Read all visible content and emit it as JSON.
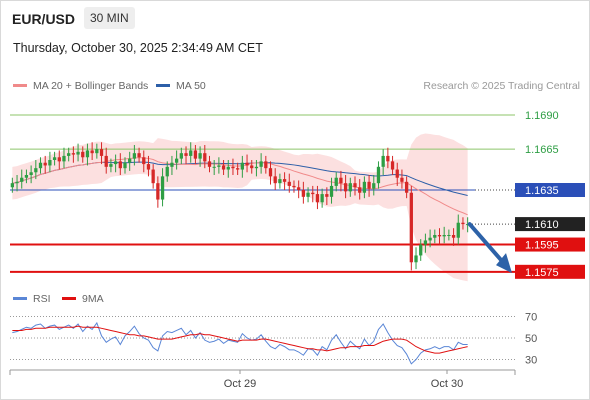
{
  "header": {
    "pair": "EUR/USD",
    "timeframe": "30 MIN",
    "timestamp": "Thursday, October 30, 2025 2:34:49 AM CET",
    "credit": "Research © 2025 Trading Central"
  },
  "legend": {
    "ma20": "MA 20 + Bollinger Bands",
    "ma50": "MA 50",
    "rsi": "RSI",
    "ma9": "9MA"
  },
  "colors": {
    "bull": "#2e9e44",
    "bear": "#d62828",
    "ma20": "#f08a8a",
    "ma50": "#2d5fa8",
    "band": "#fbdada",
    "resistance_line": "#8cc56a",
    "pivot_line": "#2b4fb8",
    "support_line": "#e01010",
    "arrow": "#2d62a8",
    "rsi": "#5a86d6",
    "rsi_ma": "#e01010"
  },
  "chart_data": [
    {
      "type": "candlestick",
      "title": "EUR/USD 30 MIN",
      "ylim": [
        1.1569,
        1.1701
      ],
      "x_ticks": [
        "Oct 29",
        "Oct 30"
      ],
      "levels": [
        {
          "label": "1.1690",
          "value": 1.169,
          "kind": "resistance"
        },
        {
          "label": "1.1665",
          "value": 1.1665,
          "kind": "resistance"
        },
        {
          "label": "1.1635",
          "value": 1.1635,
          "kind": "pivot"
        },
        {
          "label": "1.1610",
          "value": 1.161,
          "kind": "last"
        },
        {
          "label": "1.1595",
          "value": 1.1595,
          "kind": "support"
        },
        {
          "label": "1.1575",
          "value": 1.1575,
          "kind": "support"
        }
      ],
      "closes": [
        1.164,
        1.1641,
        1.1644,
        1.1646,
        1.1648,
        1.1651,
        1.1655,
        1.1653,
        1.1657,
        1.1659,
        1.1656,
        1.166,
        1.1662,
        1.1661,
        1.1663,
        1.1659,
        1.1664,
        1.1662,
        1.1665,
        1.166,
        1.1652,
        1.1654,
        1.1656,
        1.1651,
        1.1655,
        1.1658,
        1.1662,
        1.1659,
        1.1654,
        1.165,
        1.164,
        1.1628,
        1.1645,
        1.1652,
        1.1655,
        1.1658,
        1.1662,
        1.166,
        1.1664,
        1.1658,
        1.1662,
        1.1656,
        1.1652,
        1.1652,
        1.1653,
        1.165,
        1.1652,
        1.1651,
        1.165,
        1.1655,
        1.1653,
        1.1651,
        1.1652,
        1.1656,
        1.1651,
        1.1645,
        1.164,
        1.1643,
        1.1641,
        1.1638,
        1.1637,
        1.1635,
        1.163,
        1.1633,
        1.1632,
        1.1626,
        1.1632,
        1.163,
        1.1638,
        1.1644,
        1.164,
        1.1634,
        1.164,
        1.1637,
        1.1633,
        1.1641,
        1.1636,
        1.164,
        1.1652,
        1.166,
        1.1656,
        1.165,
        1.1644,
        1.1641,
        1.1633,
        1.1582,
        1.1587,
        1.1595,
        1.1598,
        1.16,
        1.1602,
        1.1601,
        1.1602,
        1.1602,
        1.16,
        1.1611,
        1.161,
        1.161
      ]
    },
    {
      "type": "line",
      "title": "RSI",
      "ylim": [
        24,
        76
      ],
      "y_ticks": [
        70,
        50,
        30
      ],
      "series": [
        {
          "name": "RSI",
          "values": [
            55,
            56,
            58,
            60,
            59,
            62,
            63,
            59,
            61,
            62,
            58,
            60,
            62,
            59,
            63,
            56,
            61,
            58,
            64,
            52,
            46,
            49,
            51,
            44,
            52,
            56,
            61,
            54,
            50,
            48,
            41,
            38,
            52,
            56,
            55,
            57,
            59,
            53,
            57,
            50,
            55,
            48,
            46,
            47,
            49,
            45,
            48,
            47,
            46,
            54,
            50,
            48,
            49,
            53,
            47,
            42,
            40,
            44,
            42,
            39,
            39,
            37,
            34,
            40,
            39,
            34,
            42,
            39,
            48,
            53,
            46,
            40,
            47,
            43,
            40,
            49,
            43,
            47,
            58,
            63,
            55,
            48,
            43,
            41,
            35,
            26,
            30,
            36,
            39,
            40,
            42,
            40,
            42,
            42,
            39,
            46,
            44,
            44
          ]
        },
        {
          "name": "9MA",
          "values": [
            57,
            57,
            57,
            58,
            58,
            59,
            59,
            59,
            60,
            60,
            60,
            60,
            60,
            60,
            61,
            60,
            60,
            60,
            60,
            59,
            58,
            57,
            56,
            55,
            54,
            53,
            53,
            52,
            52,
            51,
            50,
            49,
            49,
            49,
            49,
            50,
            51,
            52,
            53,
            53,
            54,
            53,
            53,
            52,
            51,
            50,
            49,
            48,
            47,
            48,
            48,
            48,
            48,
            49,
            49,
            48,
            47,
            46,
            45,
            44,
            43,
            42,
            41,
            40,
            40,
            39,
            39,
            38,
            39,
            40,
            41,
            41,
            42,
            42,
            42,
            43,
            43,
            43,
            45,
            47,
            48,
            49,
            49,
            49,
            48,
            45,
            42,
            40,
            38,
            37,
            36,
            36,
            37,
            38,
            39,
            40,
            41,
            42
          ]
        }
      ]
    }
  ]
}
